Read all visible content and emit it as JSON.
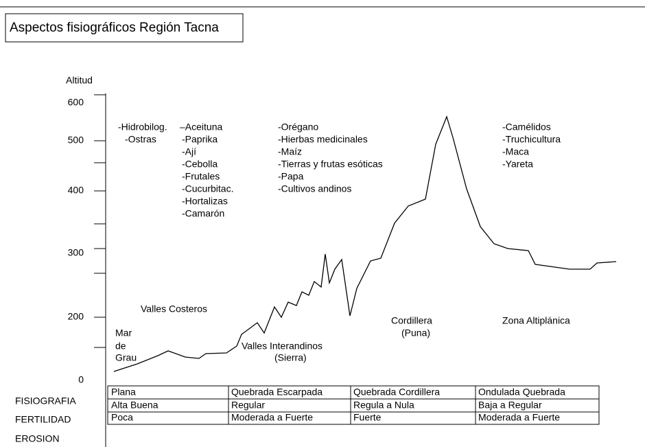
{
  "title": "Aspectos fisiográficos Región Tacna",
  "axis": {
    "label": "Altitud",
    "ticks": [
      "600",
      "500",
      "400",
      "300",
      "200",
      "0"
    ]
  },
  "products": [
    [
      "-Hidrobilog.",
      "-Ostras"
    ],
    [
      "–Aceituna",
      "-Paprika",
      "-Ají",
      "-Cebolla",
      "-Frutales",
      "-Cucurbitac.",
      "-Hortalizas",
      "-Camarón"
    ],
    [
      "-Orégano",
      "-Hierbas medicinales",
      "-Maíz",
      "-Tierras y frutas esóticas",
      "-Papa",
      "-Cultivos andinos"
    ],
    [
      "-Camélidos",
      "-Truchicultura",
      "-Maca",
      "-Yareta"
    ]
  ],
  "zones": [
    {
      "lines": [
        "Valles Costeros"
      ]
    },
    {
      "lines": [
        "Mar",
        "de",
        "Grau"
      ]
    },
    {
      "lines": [
        "Valles Interandinos",
        "(Sierra)"
      ]
    },
    {
      "lines": [
        "Cordillera",
        "(Puna)"
      ]
    },
    {
      "lines": [
        "Zona Altiplánica"
      ]
    }
  ],
  "table": {
    "row_labels": [
      "FISIOGRAFIA",
      "FERTILIDAD",
      "EROSION"
    ],
    "rows": [
      [
        "Plana",
        "Quebrada Escarpada",
        "Quebrada Cordillera",
        "Ondulada Quebrada"
      ],
      [
        "Alta Buena",
        "Regular",
        "Regula a Nula",
        "Baja a Regular"
      ],
      [
        "Poca",
        "Moderada a Fuerte",
        "Fuerte",
        "Moderada a Fuerte"
      ]
    ]
  }
}
